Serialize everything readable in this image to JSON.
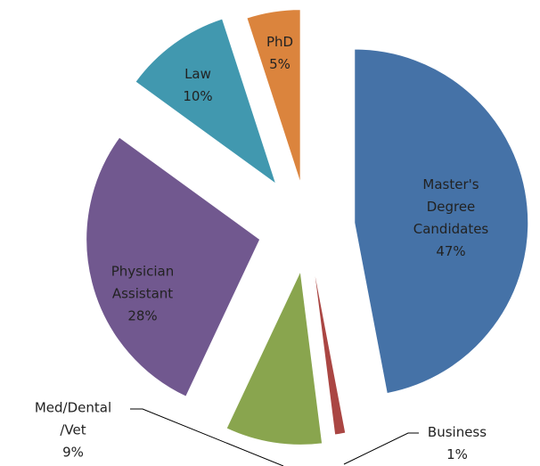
{
  "chart_data": {
    "type": "pie",
    "categories": [
      "Master's Degree Candidates",
      "Business",
      "Med/Dental/Vet",
      "Physician Assistant",
      "Law",
      "PhD"
    ],
    "values": [
      47,
      1,
      9,
      28,
      10,
      5
    ],
    "value_labels": [
      "47%",
      "1%",
      "9%",
      "28%",
      "10%",
      "5%"
    ],
    "colors": [
      "#4572a7",
      "#aa4643",
      "#89a54e",
      "#71588f",
      "#4198af",
      "#db843d"
    ]
  }
}
